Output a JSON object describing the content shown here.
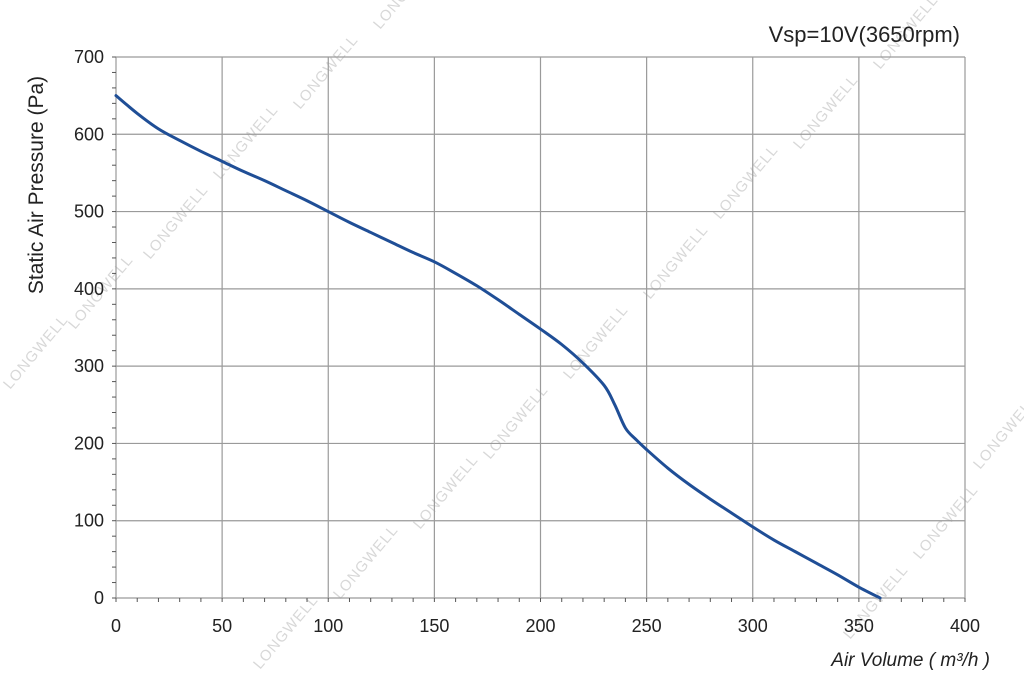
{
  "chart_data": {
    "type": "line",
    "title": "Vsp=10V(3650rpm)",
    "xlabel": "Air Volume ( m³/h )",
    "ylabel": "Static Air Pressure  (Pa)",
    "xlim": [
      0,
      400
    ],
    "ylim": [
      0,
      700
    ],
    "x_ticks": [
      "0",
      "50",
      "100",
      "150",
      "200",
      "250",
      "300",
      "350",
      "400"
    ],
    "y_ticks": [
      "0",
      "100",
      "200",
      "300",
      "400",
      "500",
      "600",
      "700"
    ],
    "grid": true,
    "watermark": "LONGWELL",
    "series": [
      {
        "color": "#1f4e96",
        "x": [
          0,
          10,
          20,
          30,
          40,
          50,
          60,
          70,
          80,
          90,
          100,
          110,
          120,
          130,
          140,
          150,
          160,
          170,
          180,
          190,
          200,
          210,
          220,
          230,
          235,
          240,
          245,
          250,
          260,
          270,
          280,
          290,
          300,
          310,
          320,
          330,
          340,
          350,
          360
        ],
        "y": [
          650,
          627,
          607,
          592,
          578,
          565,
          552,
          540,
          527,
          514,
          500,
          486,
          473,
          460,
          447,
          435,
          420,
          404,
          386,
          367,
          348,
          328,
          304,
          275,
          250,
          220,
          205,
          192,
          168,
          147,
          128,
          110,
          92,
          75,
          60,
          45,
          30,
          14,
          0
        ]
      }
    ]
  }
}
